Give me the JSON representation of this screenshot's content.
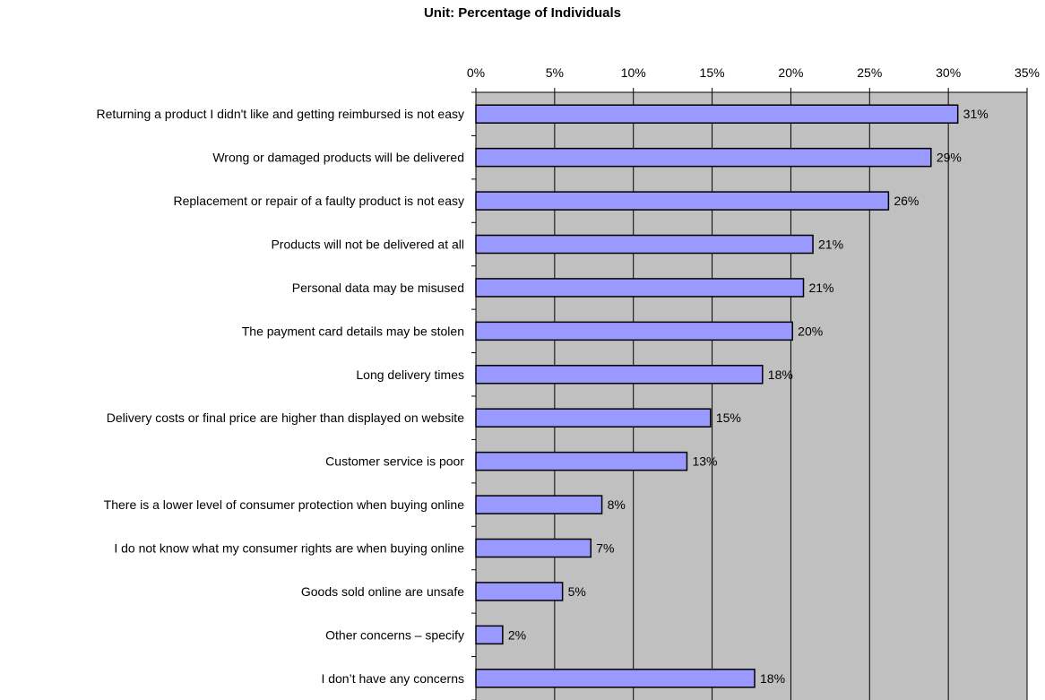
{
  "chart_data": {
    "type": "bar",
    "orientation": "horizontal",
    "title": "Unit: Percentage of Individuals",
    "xlabel": "",
    "ylabel": "",
    "xlim": [
      0,
      35
    ],
    "x_ticks": [
      "0%",
      "5%",
      "10%",
      "15%",
      "20%",
      "25%",
      "30%",
      "35%"
    ],
    "x_axis_position": "top",
    "grid": true,
    "legend": "none",
    "categories": [
      "Returning a product I didn't like and getting reimbursed is not easy",
      "Wrong or damaged products will be delivered",
      "Replacement or repair of a faulty product is not easy",
      "Products will not be delivered at all",
      "Personal data may be misused",
      "The payment card details may be stolen",
      "Long delivery times",
      "Delivery costs or final price are higher than displayed on website",
      "Customer service is poor",
      "There is a lower level of consumer protection when buying online",
      "I do not know what my consumer rights are when buying online",
      "Goods sold online are unsafe",
      "Other concerns – specify",
      "I don’t have any concerns"
    ],
    "values": [
      30.6,
      28.9,
      26.2,
      21.4,
      20.8,
      20.1,
      18.2,
      14.9,
      13.4,
      8.0,
      7.3,
      5.5,
      1.7,
      17.7
    ],
    "data_labels": [
      "31%",
      "29%",
      "26%",
      "21%",
      "21%",
      "20%",
      "18%",
      "15%",
      "13%",
      "8%",
      "7%",
      "5%",
      "2%",
      "18%"
    ],
    "colors": {
      "bar": "#9999ff",
      "bar_border": "#000000",
      "plot_bg": "#c0c0c0",
      "grid": "#000000"
    }
  }
}
